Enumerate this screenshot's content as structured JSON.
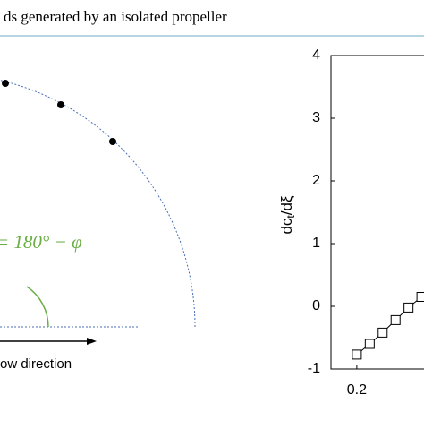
{
  "header": {
    "title": "ds generated by an isolated propeller"
  },
  "diagram": {
    "angle_label": "= 180° − φ",
    "flow_label": "ow direction"
  },
  "chart_data": {
    "type": "line",
    "ylabel": {
      "main": "dc",
      "sub": "t",
      "tail": "/dξ"
    },
    "x": [
      0.2,
      0.225,
      0.25,
      0.275,
      0.3,
      0.325
    ],
    "series": [
      {
        "color": "#000000",
        "values": [
          -0.77,
          -0.6,
          -0.42,
          -0.22,
          -0.02,
          0.15
        ]
      }
    ],
    "xlim": [
      0.15,
      0.33
    ],
    "xticks": [
      0.2
    ],
    "ylim": [
      -1,
      4
    ],
    "yticks": [
      -1,
      0,
      1,
      2,
      3,
      4
    ]
  }
}
